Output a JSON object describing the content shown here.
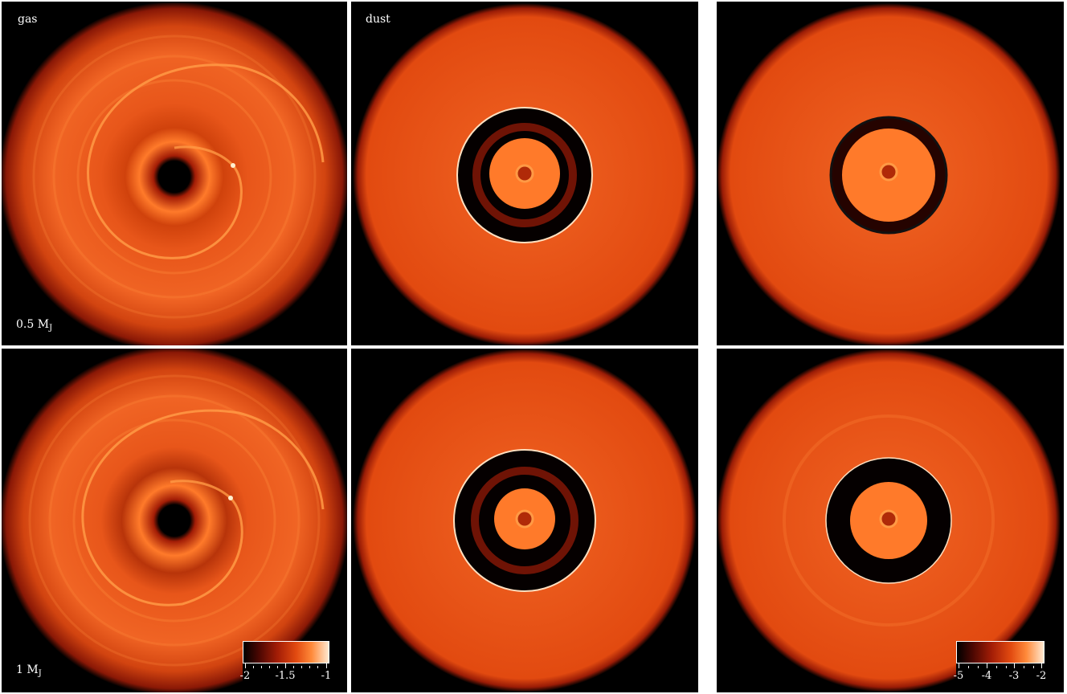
{
  "figure": {
    "panels": [
      {
        "id": "gas-0.5",
        "label": "gas",
        "mass_value": "0.5 M",
        "mass_sub": "J"
      },
      {
        "id": "dust-a-0.5",
        "label": "dust"
      },
      {
        "id": "dust-b-0.5",
        "label": ""
      },
      {
        "id": "gas-1",
        "label": "",
        "mass_value": "1 M",
        "mass_sub": "J"
      },
      {
        "id": "dust-a-1",
        "label": ""
      },
      {
        "id": "dust-b-1",
        "label": ""
      }
    ],
    "colorbars": {
      "gas": {
        "ticks": [
          "-2",
          "-1.5",
          "-1"
        ],
        "range": [
          -2,
          -1
        ]
      },
      "dust": {
        "ticks": [
          "-5",
          "-4",
          "-3",
          "-2"
        ],
        "range": [
          -5,
          -2
        ]
      }
    },
    "colors": {
      "background": "#000000",
      "disc_bright": "#ff7a2a",
      "disc_mid": "#e24a10",
      "disc_dark": "#7a1204",
      "white": "#ffffff"
    }
  }
}
